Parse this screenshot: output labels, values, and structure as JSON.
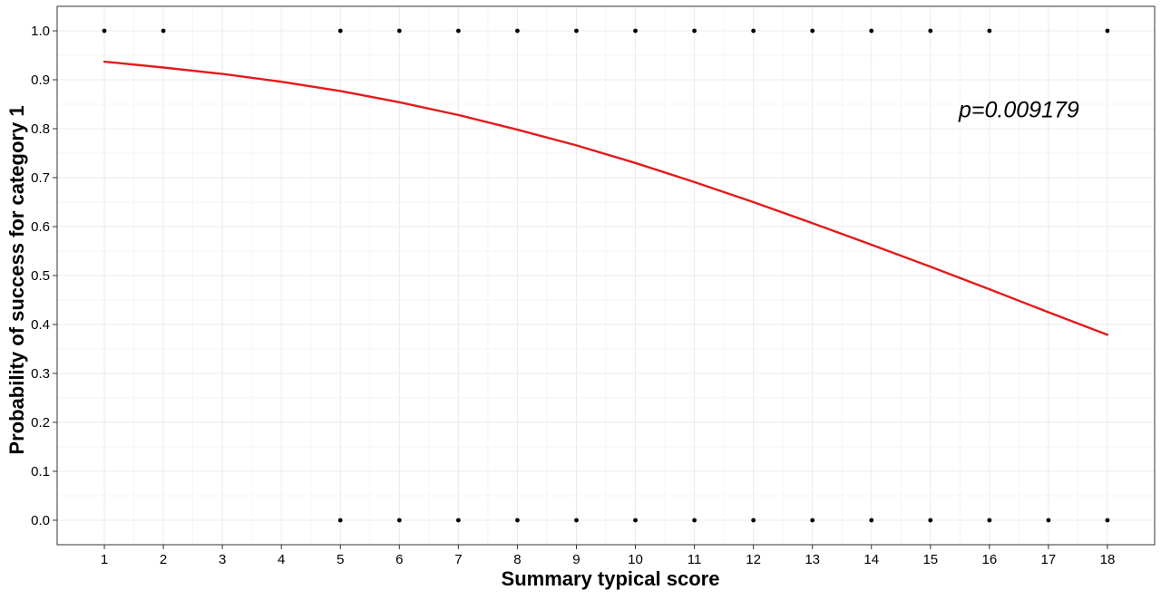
{
  "chart_data": {
    "type": "scatter",
    "title": "",
    "xlabel": "Summary typical score",
    "ylabel": "Probability of success for category 1",
    "xlim": [
      0.2,
      18.8
    ],
    "ylim": [
      -0.05,
      1.05
    ],
    "x_ticks": [
      1,
      2,
      3,
      4,
      5,
      6,
      7,
      8,
      9,
      10,
      11,
      12,
      13,
      14,
      15,
      16,
      17,
      18
    ],
    "x_tick_labels": [
      "1",
      "2",
      "3",
      "4",
      "5",
      "6",
      "7",
      "8",
      "9",
      "10",
      "11",
      "12",
      "13",
      "14",
      "15",
      "16",
      "17",
      "18"
    ],
    "y_ticks": [
      0.0,
      0.1,
      0.2,
      0.3,
      0.4,
      0.5,
      0.6,
      0.7,
      0.8,
      0.9,
      1.0
    ],
    "y_tick_labels": [
      "0.0",
      "0.1",
      "0.2",
      "0.3",
      "0.4",
      "0.5",
      "0.6",
      "0.7",
      "0.8",
      "0.9",
      "1.0"
    ],
    "grid": true,
    "legend": "none",
    "series": [
      {
        "kind": "points",
        "color": "#000000",
        "x": [
          1,
          2,
          5,
          6,
          7,
          8,
          9,
          10,
          11,
          12,
          13,
          14,
          15,
          16,
          18,
          5,
          6,
          7,
          8,
          9,
          10,
          11,
          12,
          13,
          14,
          15,
          16,
          17,
          18
        ],
        "y": [
          1,
          1,
          1,
          1,
          1,
          1,
          1,
          1,
          1,
          1,
          1,
          1,
          1,
          1,
          1,
          0,
          0,
          0,
          0,
          0,
          0,
          0,
          0,
          0,
          0,
          0,
          0,
          0,
          0
        ]
      },
      {
        "kind": "fitted-curve",
        "color": "#e41a1c",
        "x": [
          1,
          2,
          3,
          4,
          5,
          6,
          7,
          8,
          9,
          10,
          11,
          12,
          13,
          14,
          15,
          16,
          17,
          18
        ],
        "y": [
          0.937,
          0.925,
          0.912,
          0.896,
          0.877,
          0.854,
          0.828,
          0.798,
          0.766,
          0.73,
          0.691,
          0.65,
          0.607,
          0.563,
          0.518,
          0.472,
          0.425,
          0.379
        ]
      }
    ],
    "annotations": [
      {
        "text": "p=0.009179",
        "x": 16.5,
        "y": 0.84
      }
    ],
    "colors": {
      "background": "#ffffff",
      "grid_major": "#ebebeb",
      "grid_minor": "#f5f5f5",
      "axis": "#333333"
    }
  }
}
